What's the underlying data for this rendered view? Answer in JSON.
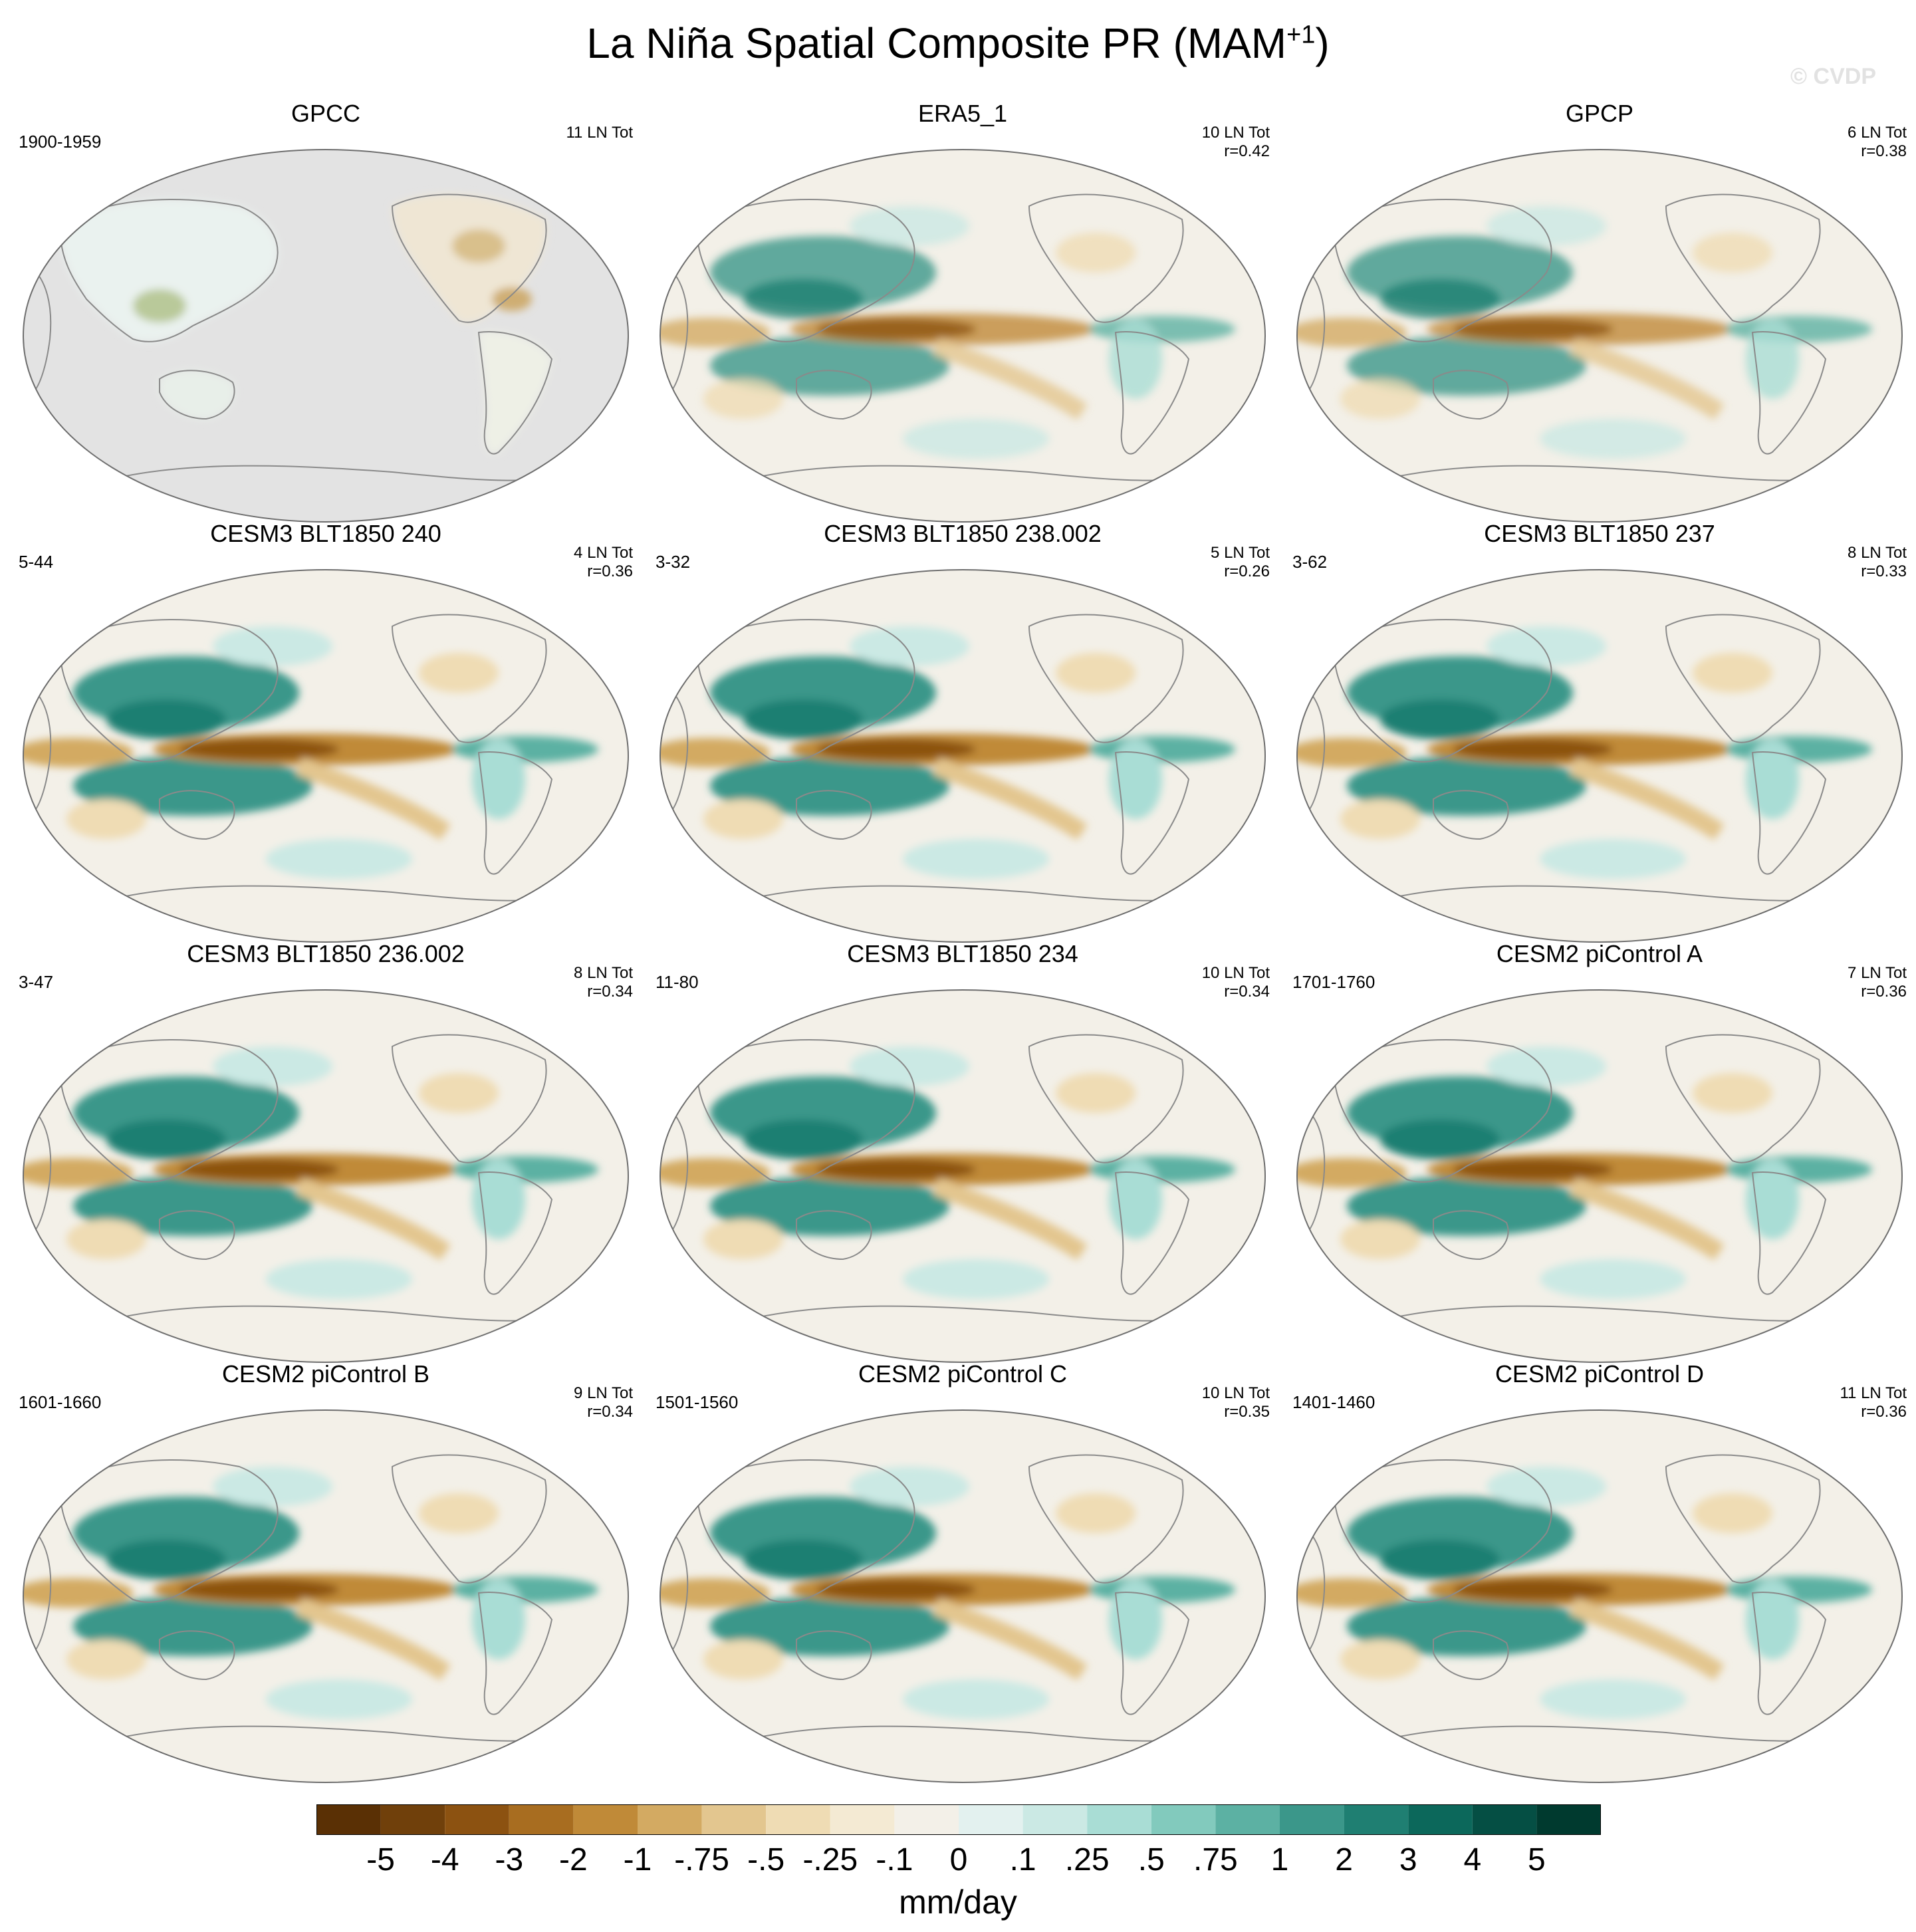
{
  "title_main": "La Niña Spatial Composite PR (MAM",
  "title_sup": "+1",
  "title_close": ")",
  "watermark": "© CVDP",
  "colors": {
    "ocean_missing": "#e3e3e3",
    "coast": "#8a8a8a",
    "border": "#6e6e6e"
  },
  "panels": [
    {
      "title": "GPCC",
      "years": "1900-1959",
      "count": "11 LN Tot",
      "r": "",
      "style": "gpcc"
    },
    {
      "title": "ERA5_1",
      "years": "",
      "count": "10 LN Tot",
      "r": "r=0.42",
      "style": "obs"
    },
    {
      "title": "GPCP",
      "years": "",
      "count": "6 LN Tot",
      "r": "r=0.38",
      "style": "obs"
    },
    {
      "title": "CESM3 BLT1850 240",
      "years": "5-44",
      "count": "4 LN Tot",
      "r": "r=0.36",
      "style": "model"
    },
    {
      "title": "CESM3 BLT1850 238.002",
      "years": "3-32",
      "count": "5 LN Tot",
      "r": "r=0.26",
      "style": "model"
    },
    {
      "title": "CESM3 BLT1850 237",
      "years": "3-62",
      "count": "8 LN Tot",
      "r": "r=0.33",
      "style": "model"
    },
    {
      "title": "CESM3 BLT1850 236.002",
      "years": "3-47",
      "count": "8 LN Tot",
      "r": "r=0.34",
      "style": "model"
    },
    {
      "title": "CESM3 BLT1850 234",
      "years": "11-80",
      "count": "10 LN Tot",
      "r": "r=0.34",
      "style": "model"
    },
    {
      "title": "CESM2 piControl A",
      "years": "1701-1760",
      "count": "7 LN Tot",
      "r": "r=0.36",
      "style": "model"
    },
    {
      "title": "CESM2 piControl B",
      "years": "1601-1660",
      "count": "9 LN Tot",
      "r": "r=0.34",
      "style": "model"
    },
    {
      "title": "CESM2 piControl C",
      "years": "1501-1560",
      "count": "10 LN Tot",
      "r": "r=0.35",
      "style": "model"
    },
    {
      "title": "CESM2 piControl D",
      "years": "1401-1460",
      "count": "11 LN Tot",
      "r": "r=0.36",
      "style": "model"
    }
  ],
  "colorbar": {
    "colors": [
      "#5a3005",
      "#70400b",
      "#8c5211",
      "#a86d20",
      "#c08a38",
      "#d3aa62",
      "#e3c68f",
      "#efdcb4",
      "#f4ead3",
      "#f3f0e8",
      "#e3f1ef",
      "#cbe9e4",
      "#a9ddd5",
      "#82cabd",
      "#5cb1a3",
      "#3b978a",
      "#1f7f72",
      "#0c685b",
      "#054f44",
      "#003a2f"
    ],
    "labels": [
      "-5",
      "-4",
      "-3",
      "-2",
      "-1",
      "-.75",
      "-.5",
      "-.25",
      "-.1",
      "0",
      ".1",
      ".25",
      ".5",
      ".75",
      "1",
      "2",
      "3",
      "4",
      "5"
    ],
    "unit": "mm/day"
  }
}
